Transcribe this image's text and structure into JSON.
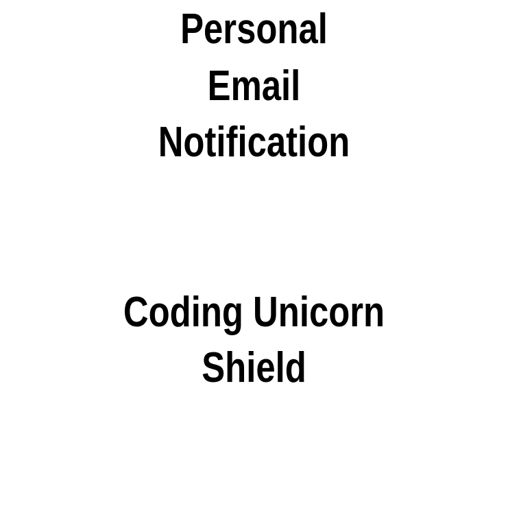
{
  "top_text": {
    "line1": "Personal",
    "line2": "Email",
    "line3": "Notification"
  },
  "bottom_text": {
    "line1": "Coding Unicorn",
    "line2": "Shield"
  },
  "colors": {
    "background": "#ffffff",
    "text": "#000000"
  }
}
